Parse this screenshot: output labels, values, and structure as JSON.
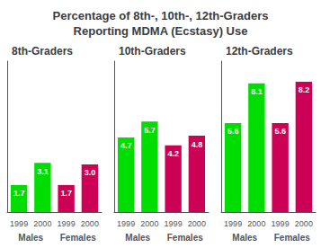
{
  "title": "Percentage of 8th-, 10th-, 12th-Graders\nReporting MDMA (Ecstasy) Use",
  "chart_data": [
    {
      "type": "bar",
      "title": "8th-Graders",
      "categories": [
        "1999",
        "2000",
        "1999",
        "2000"
      ],
      "series": [
        {
          "name": "Males",
          "color": "#00dd00",
          "values": [
            1.7,
            3.1,
            null,
            null
          ]
        },
        {
          "name": "Females",
          "color": "#cc0055",
          "values": [
            null,
            null,
            1.7,
            3.0
          ],
          "value_labels": [
            null,
            null,
            "1.7",
            "3.0"
          ]
        }
      ],
      "ylim": [
        0,
        9.5
      ],
      "stacked": true,
      "data_labels": true,
      "tick_labels": "x",
      "grid": false
    },
    {
      "type": "bar",
      "title": "10th-Graders",
      "categories": [
        "1999",
        "2000",
        "1999",
        "2000"
      ],
      "series": [
        {
          "name": "Males",
          "color": "#00dd00",
          "values": [
            4.7,
            5.7,
            null,
            null
          ]
        },
        {
          "name": "Females",
          "color": "#cc0055",
          "values": [
            null,
            null,
            4.2,
            4.8
          ]
        }
      ],
      "ylim": [
        0,
        9.5
      ],
      "stacked": true,
      "data_labels": true,
      "tick_labels": "x",
      "grid": false
    },
    {
      "type": "bar",
      "title": "12th-Graders",
      "categories": [
        "1999",
        "2000",
        "1999",
        "2000"
      ],
      "series": [
        {
          "name": "Males",
          "color": "#00dd00",
          "values": [
            5.6,
            8.1,
            null,
            null
          ]
        },
        {
          "name": "Females",
          "color": "#cc0055",
          "values": [
            null,
            null,
            5.6,
            8.2
          ]
        }
      ],
      "ylim": [
        0,
        9.5
      ],
      "stacked": true,
      "data_labels": true,
      "tick_labels": "x",
      "grid": false
    }
  ]
}
